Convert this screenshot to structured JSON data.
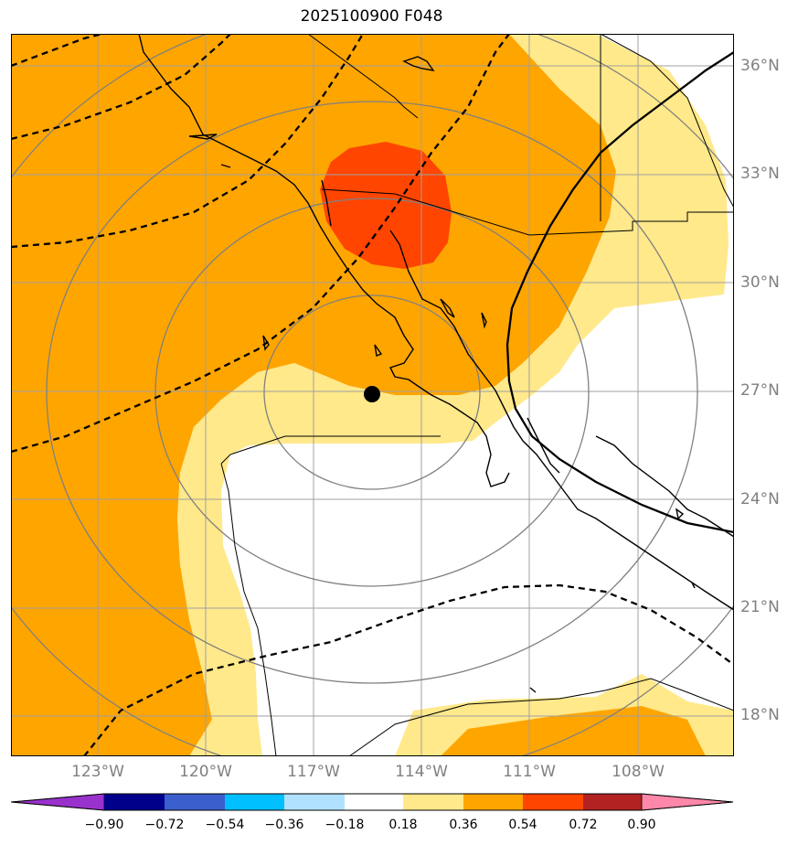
{
  "title": "2025100900 F048",
  "lat_labels": [
    "36°N",
    "33°N",
    "30°N",
    "27°N",
    "24°N",
    "21°N",
    "18°N"
  ],
  "lon_labels": [
    "123°W",
    "120°W",
    "117°W",
    "114°W",
    "111°W",
    "108°W"
  ],
  "colorbar": {
    "ticks": [
      "−0.90",
      "−0.72",
      "−0.54",
      "−0.36",
      "−0.18",
      "0.18",
      "0.36",
      "0.54",
      "0.72",
      "0.90"
    ],
    "colors": [
      "#9932cc",
      "#00008b",
      "#3a5fcd",
      "#00bfff",
      "#b0e2ff",
      "#ffffff",
      "#ffe98a",
      "#ffa500",
      "#ff4500",
      "#b22222",
      "#ff88aa"
    ]
  },
  "colors": {
    "shade_0_18_0_36": "#ffe98a",
    "shade_0_36_0_54": "#ffa500",
    "shade_0_54_0_72": "#ff4500",
    "gridline": "#a0a0a0",
    "range_ring": "#808080"
  },
  "marker": {
    "lon": -115.0,
    "lat": 26.9
  }
}
